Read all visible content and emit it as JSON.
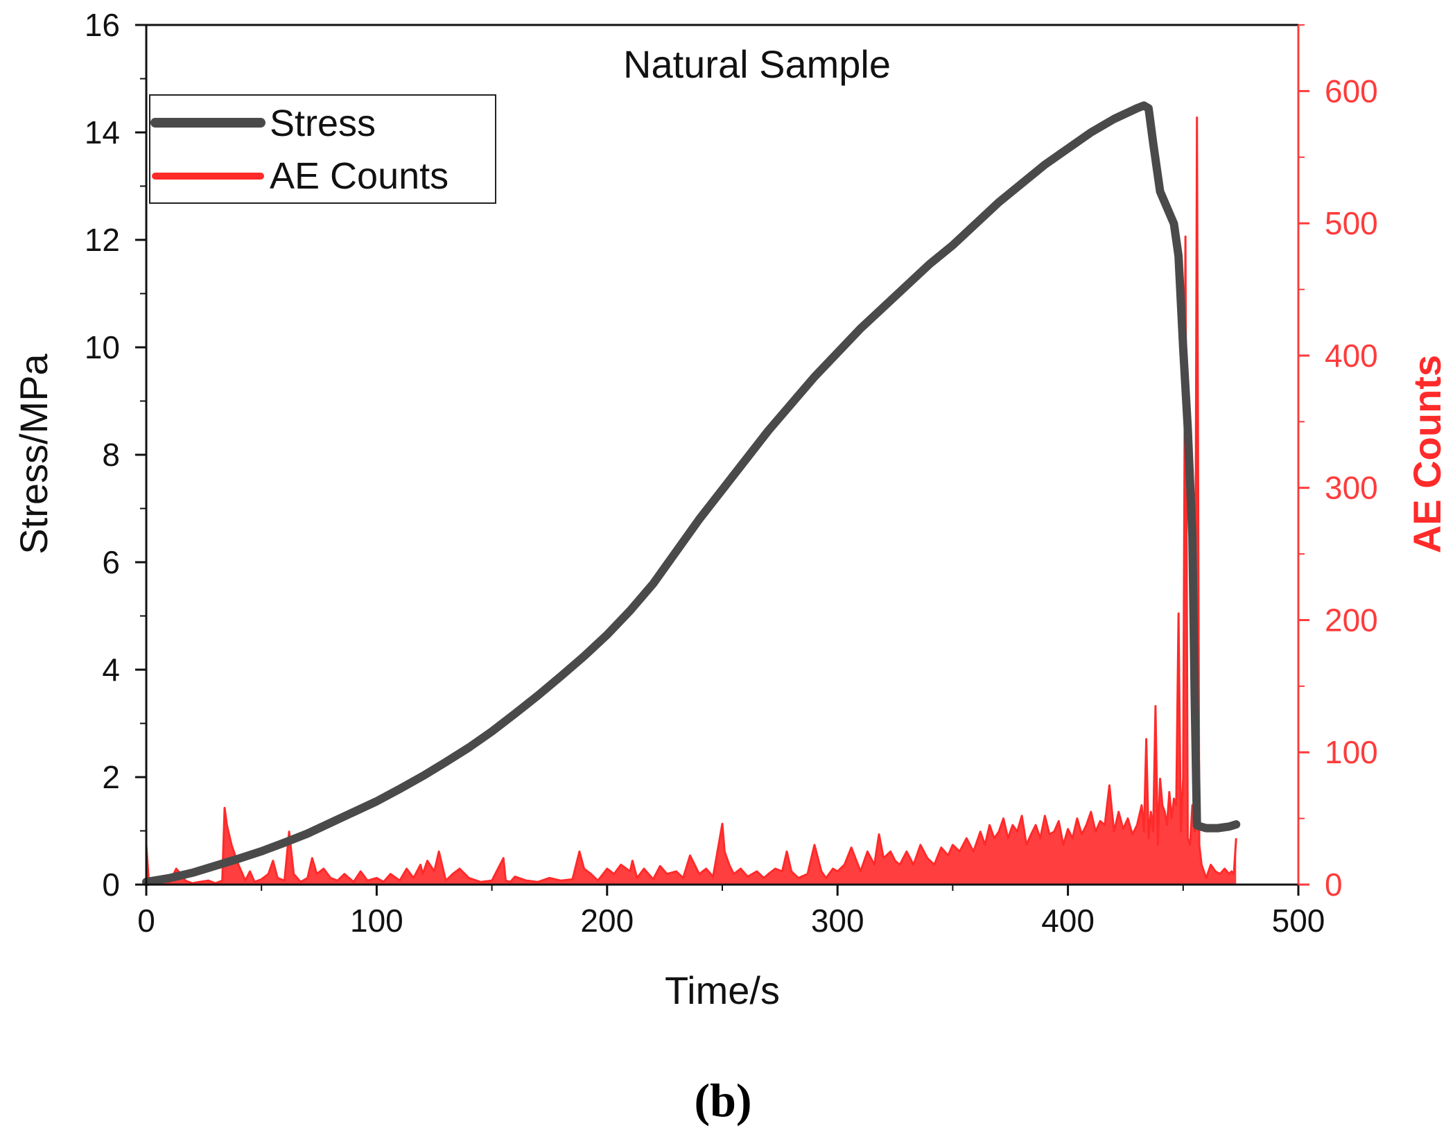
{
  "figure_label": "(b)",
  "chart_data": {
    "type": "line",
    "title": "Natural Sample",
    "xlabel": "Time/s",
    "ylabel": "Stress/MPa",
    "y2label": "AE Counts",
    "xlim": [
      0,
      500
    ],
    "ylim": [
      0,
      16
    ],
    "y2lim": [
      0,
      650
    ],
    "x_ticks": [
      "0",
      "100",
      "200",
      "300",
      "400",
      "500"
    ],
    "y_ticks": [
      "0",
      "2",
      "4",
      "6",
      "8",
      "10",
      "12",
      "14",
      "16"
    ],
    "y2_ticks": [
      "0",
      "100",
      "200",
      "300",
      "400",
      "500",
      "600"
    ],
    "legend_position": "top-left",
    "colors": {
      "stress": "#4a4a4a",
      "ae": "#ff2a2a",
      "ae_axis": "#ff3b3b"
    },
    "series": [
      {
        "name": "Stress",
        "axis": "left",
        "x": [
          0,
          10,
          20,
          30,
          40,
          50,
          60,
          70,
          80,
          90,
          100,
          110,
          120,
          130,
          140,
          150,
          160,
          170,
          180,
          190,
          200,
          210,
          220,
          230,
          240,
          250,
          260,
          270,
          280,
          290,
          300,
          310,
          320,
          330,
          340,
          350,
          360,
          370,
          380,
          390,
          400,
          410,
          420,
          425,
          430,
          433,
          435,
          437,
          440,
          443,
          446,
          448,
          450,
          452,
          454,
          455,
          456,
          460,
          465,
          470,
          473
        ],
        "y": [
          0.05,
          0.12,
          0.22,
          0.35,
          0.48,
          0.62,
          0.78,
          0.95,
          1.15,
          1.35,
          1.55,
          1.78,
          2.02,
          2.28,
          2.55,
          2.85,
          3.18,
          3.52,
          3.88,
          4.25,
          4.65,
          5.1,
          5.6,
          6.2,
          6.8,
          7.35,
          7.9,
          8.45,
          8.95,
          9.45,
          9.9,
          10.35,
          10.75,
          11.15,
          11.55,
          11.9,
          12.3,
          12.7,
          13.05,
          13.4,
          13.7,
          14.0,
          14.25,
          14.35,
          14.45,
          14.5,
          14.45,
          13.8,
          12.9,
          12.6,
          12.3,
          11.7,
          10.0,
          8.5,
          6.5,
          3.5,
          1.1,
          1.05,
          1.05,
          1.08,
          1.12
        ]
      },
      {
        "name": "AE Counts",
        "axis": "right",
        "x": [
          0,
          1,
          3,
          6,
          10,
          13,
          15,
          17,
          20,
          23,
          27,
          30,
          33,
          34,
          35,
          37,
          40,
          43,
          45,
          47,
          50,
          53,
          55,
          57,
          60,
          62,
          64,
          67,
          70,
          72,
          74,
          77,
          80,
          83,
          86,
          90,
          93,
          96,
          100,
          103,
          106,
          110,
          113,
          116,
          119,
          120,
          122,
          125,
          127,
          130,
          133,
          136,
          140,
          145,
          150,
          155,
          156,
          158,
          160,
          165,
          170,
          175,
          180,
          185,
          188,
          190,
          193,
          196,
          200,
          203,
          206,
          210,
          211,
          213,
          216,
          220,
          223,
          226,
          230,
          233,
          236,
          240,
          243,
          246,
          250,
          251,
          253,
          255,
          258,
          261,
          265,
          268,
          270,
          273,
          276,
          278,
          280,
          283,
          287,
          290,
          293,
          295,
          298,
          300,
          303,
          306,
          310,
          313,
          316,
          318,
          320,
          323,
          325,
          327,
          330,
          333,
          336,
          339,
          342,
          345,
          348,
          350,
          353,
          356,
          359,
          362,
          364,
          366,
          368,
          370,
          372,
          374,
          376,
          378,
          380,
          382,
          384,
          386,
          388,
          390,
          392,
          394,
          396,
          398,
          400,
          402,
          404,
          406,
          408,
          410,
          412,
          414,
          416,
          418,
          420,
          422,
          424,
          426,
          428,
          430,
          432,
          433,
          434,
          435,
          436,
          437,
          438,
          439,
          440,
          441,
          442,
          443,
          444,
          445,
          446,
          447,
          448,
          449,
          450,
          451,
          452,
          453,
          454,
          455,
          456,
          457,
          458,
          460,
          462,
          464,
          466,
          468,
          470,
          471,
          472,
          473
        ],
        "y": [
          30,
          5,
          2,
          3,
          1,
          12,
          8,
          3,
          1,
          2,
          3,
          1,
          3,
          58,
          45,
          30,
          15,
          3,
          10,
          2,
          4,
          8,
          18,
          5,
          3,
          40,
          8,
          2,
          5,
          20,
          8,
          12,
          5,
          3,
          8,
          2,
          10,
          3,
          5,
          2,
          8,
          3,
          12,
          5,
          15,
          8,
          18,
          10,
          25,
          3,
          8,
          12,
          5,
          2,
          3,
          20,
          3,
          2,
          6,
          3,
          2,
          5,
          3,
          4,
          25,
          12,
          8,
          3,
          12,
          8,
          15,
          10,
          18,
          5,
          12,
          4,
          14,
          8,
          10,
          5,
          22,
          8,
          12,
          6,
          46,
          25,
          15,
          8,
          12,
          6,
          10,
          5,
          8,
          12,
          10,
          25,
          10,
          5,
          8,
          30,
          10,
          5,
          12,
          10,
          15,
          28,
          10,
          25,
          15,
          38,
          20,
          25,
          18,
          15,
          25,
          15,
          30,
          20,
          15,
          28,
          22,
          30,
          25,
          35,
          25,
          40,
          30,
          45,
          35,
          40,
          50,
          35,
          45,
          40,
          52,
          30,
          38,
          45,
          35,
          52,
          38,
          40,
          48,
          30,
          42,
          35,
          50,
          38,
          45,
          55,
          40,
          48,
          45,
          75,
          40,
          55,
          42,
          50,
          38,
          45,
          60,
          40,
          110,
          35,
          55,
          40,
          135,
          30,
          80,
          60,
          55,
          45,
          70,
          50,
          65,
          60,
          205,
          40,
          80,
          490,
          35,
          30,
          60,
          40,
          580,
          30,
          15,
          5,
          15,
          10,
          8,
          12,
          8,
          10,
          8,
          35
        ]
      }
    ]
  }
}
